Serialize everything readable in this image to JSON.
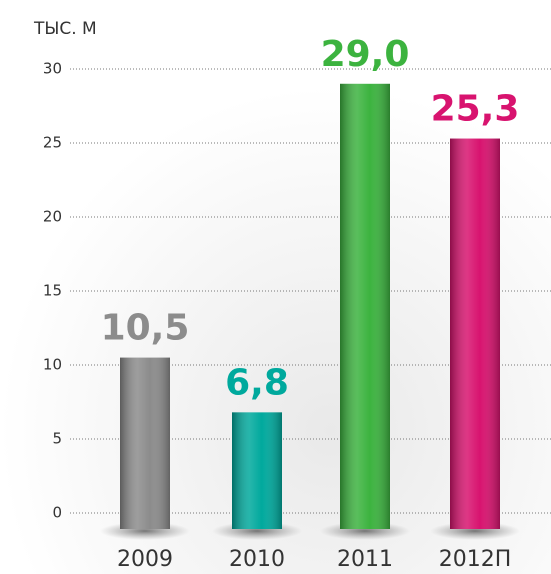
{
  "chart_data": {
    "type": "bar",
    "y_label": "ТЫС. М",
    "categories": [
      "2009",
      "2010",
      "2011",
      "2012П"
    ],
    "values": [
      10.5,
      6.8,
      29.0,
      25.3
    ],
    "value_labels": [
      "10,5",
      "6,8",
      "29,0",
      "25,3"
    ],
    "colors": [
      "#8c8c8c",
      "#00a99d",
      "#3cb33f",
      "#d8136f"
    ],
    "ylim": [
      0,
      30
    ],
    "yticks": [
      0,
      5,
      10,
      15,
      20,
      25,
      30
    ],
    "grid": true
  }
}
